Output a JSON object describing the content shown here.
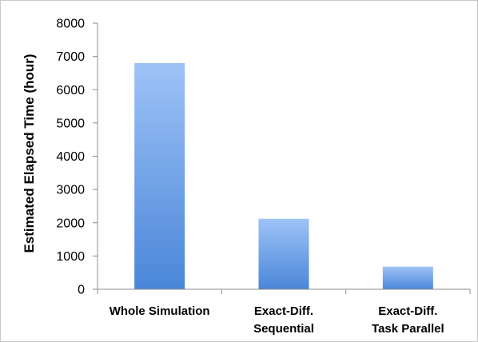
{
  "chart_data": {
    "type": "bar",
    "categories": [
      [
        "Whole Simulation"
      ],
      [
        "Exact-Diff.",
        "Sequential"
      ],
      [
        "Exact-Diff.",
        "Task Parallel"
      ]
    ],
    "values": [
      6800,
      2120,
      680
    ],
    "title": "",
    "xlabel": "",
    "ylabel": "Estimated Elapsed Time (hour)",
    "ylim": [
      0,
      8000
    ],
    "yticks": [
      0,
      1000,
      2000,
      3000,
      4000,
      5000,
      6000,
      7000,
      8000
    ],
    "grid": false,
    "legend": "none",
    "colors": {
      "bar_top": "#9ec3f7",
      "bar_bottom": "#4a86d8",
      "axis": "#8c8c8c"
    }
  }
}
